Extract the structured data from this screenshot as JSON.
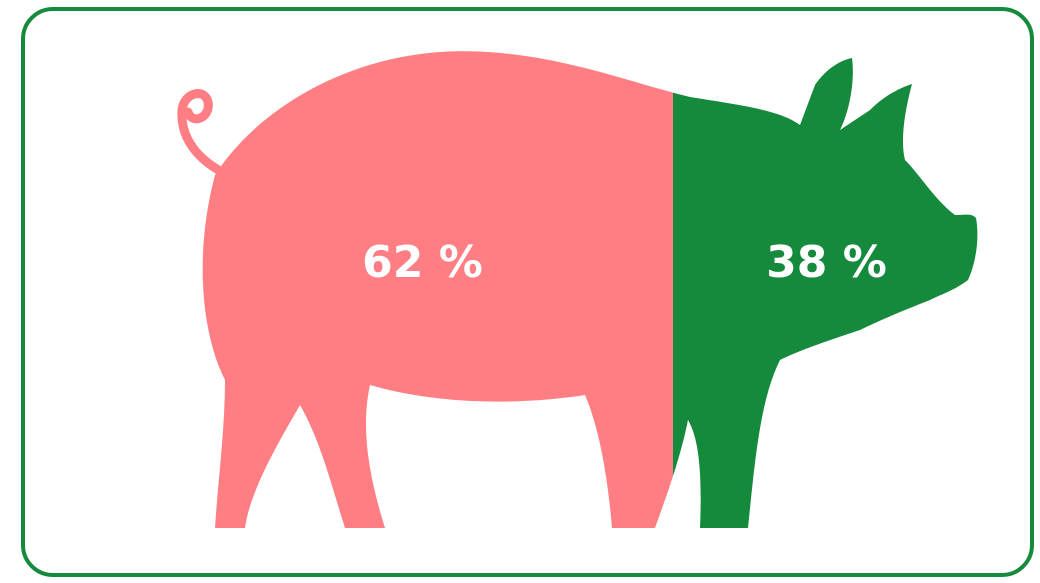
{
  "chart_data": {
    "type": "pictogram",
    "values": [
      62,
      38
    ],
    "value_labels": [
      "62 %",
      "38 %"
    ],
    "colors": [
      "#ff7e83",
      "#168a3c"
    ]
  }
}
